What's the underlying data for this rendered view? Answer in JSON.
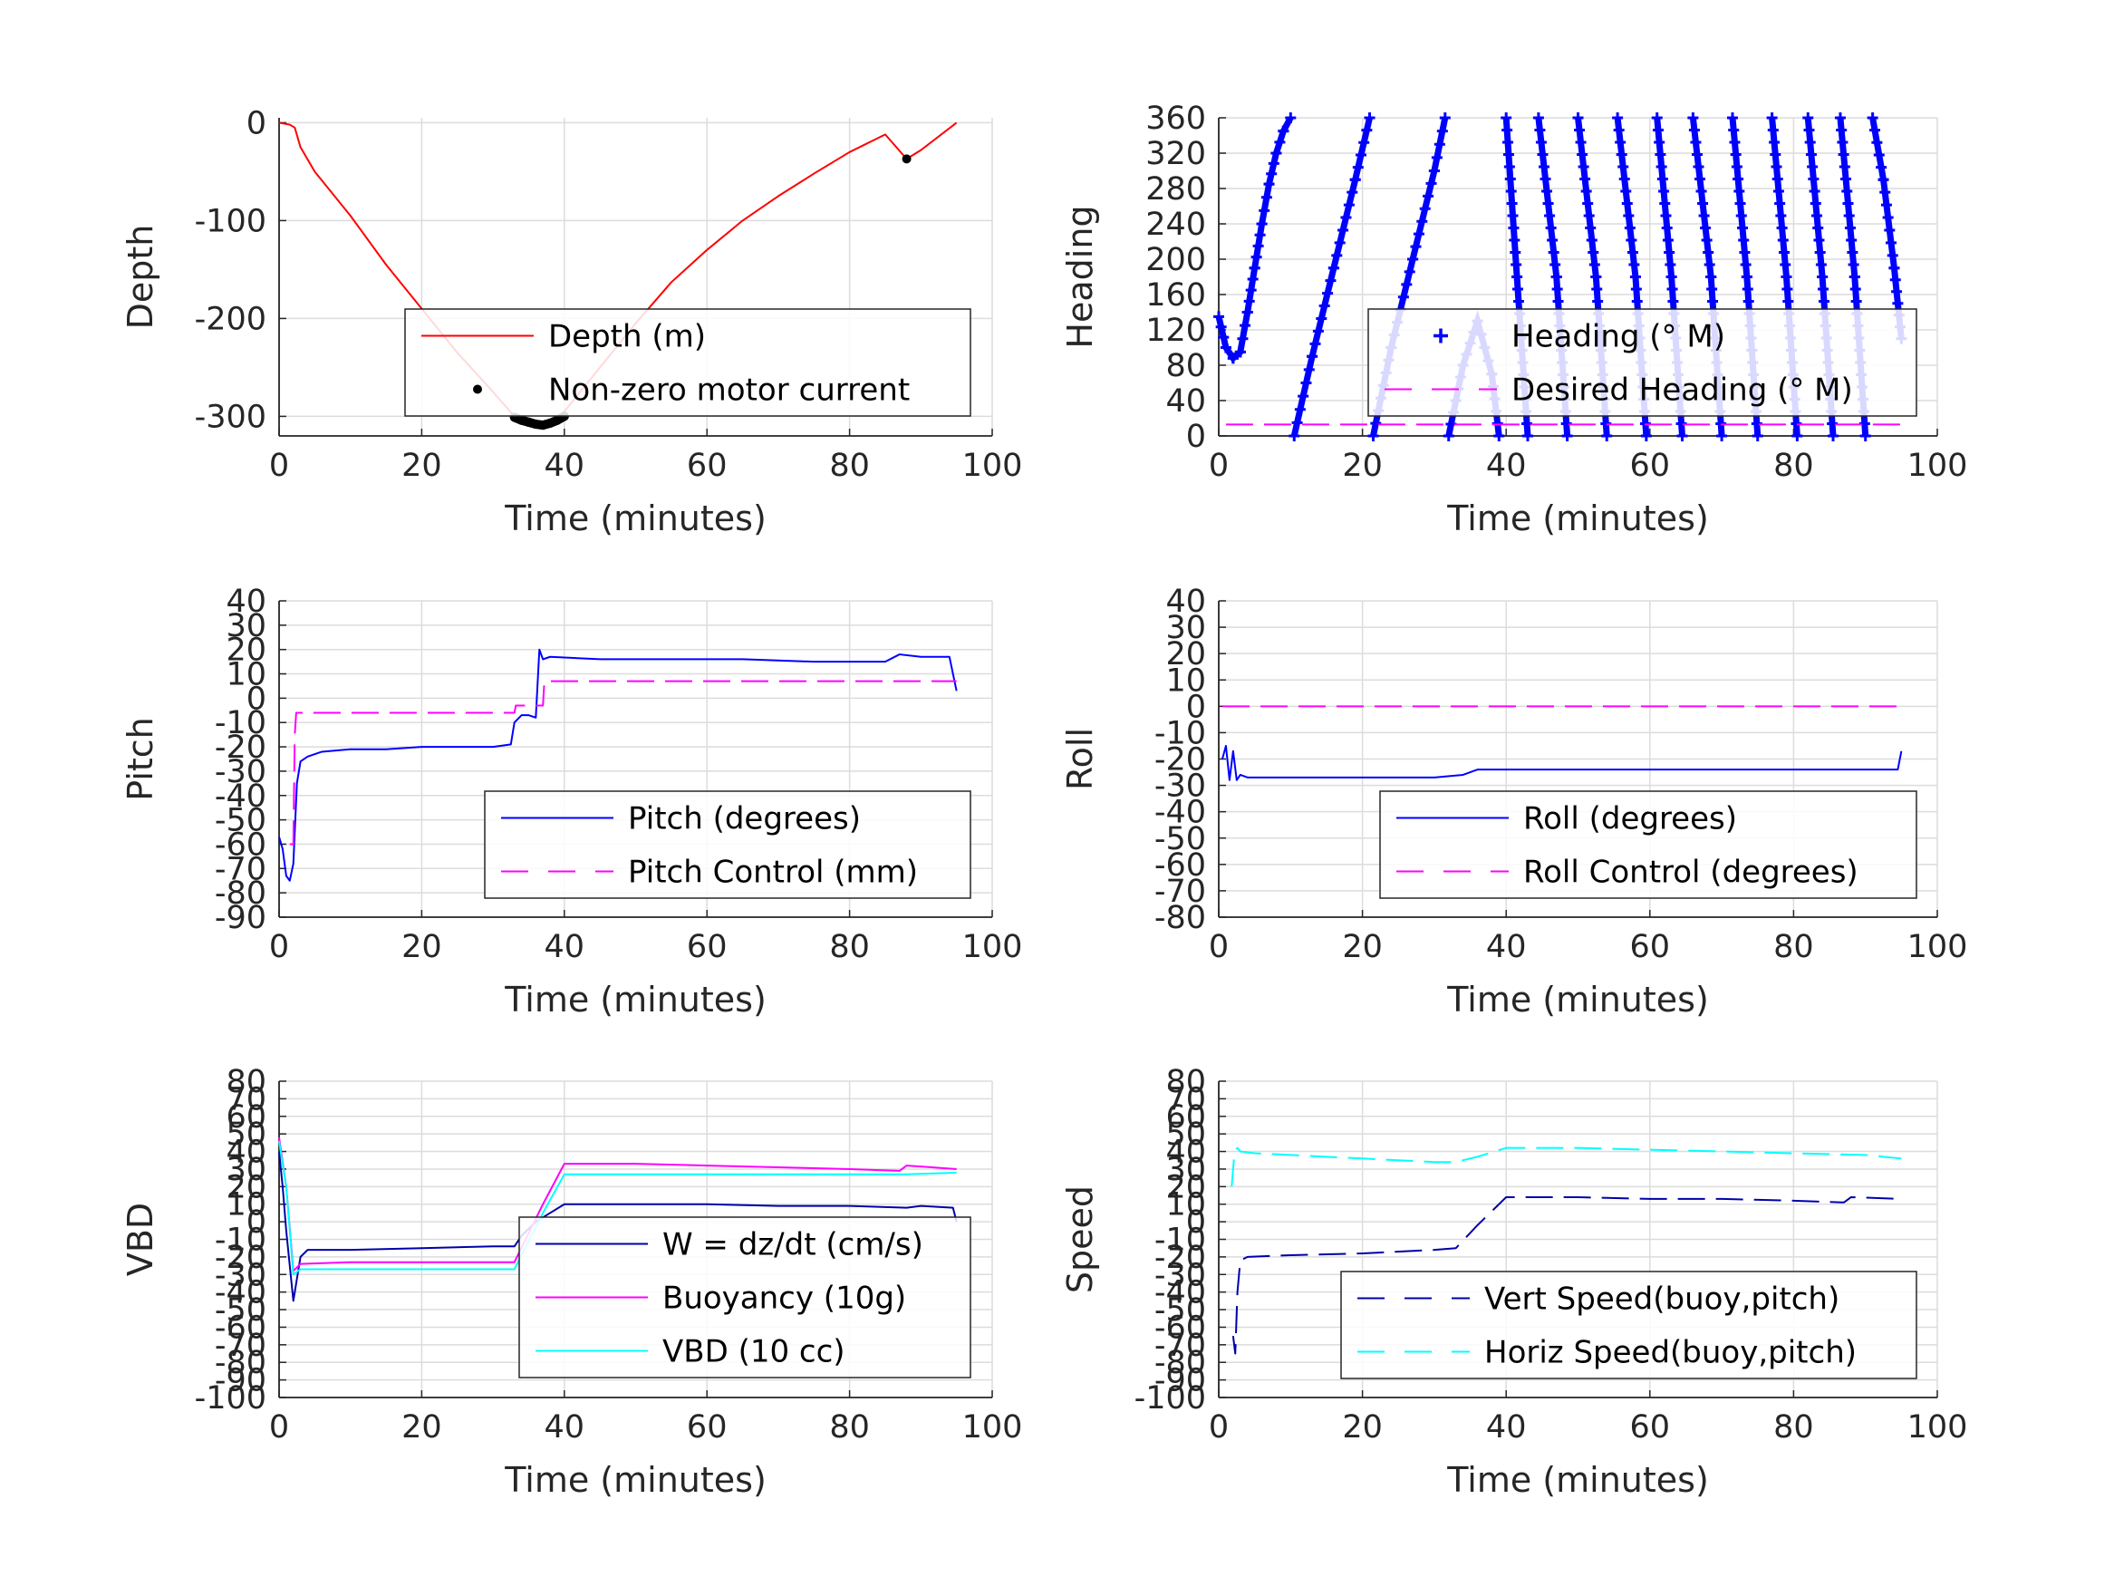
{
  "colors": {
    "depth": "#ff0000",
    "blue": "#0000ff",
    "magenta": "#ff00ff",
    "cyan": "#00ffff",
    "navy": "#0000aa",
    "marker": "#000000"
  },
  "chart_data": [
    {
      "type": "line",
      "xlabel": "Time (minutes)",
      "ylabel": "Depth",
      "xlim": [
        0,
        100
      ],
      "ylim": [
        -320,
        5
      ],
      "xticks": [
        0,
        20,
        40,
        60,
        80,
        100
      ],
      "yticks": [
        -300,
        -200,
        -100,
        0
      ],
      "legend_position": "bottom-right",
      "series": [
        {
          "name": "Depth (m)",
          "style": "solid",
          "color": "#ff0000",
          "x": [
            0,
            1.5,
            2.2,
            3,
            5,
            10,
            15,
            20,
            25,
            30,
            33,
            35,
            37,
            39,
            40,
            45,
            50,
            55,
            60,
            65,
            70,
            75,
            80,
            85,
            88,
            90,
            95
          ],
          "y": [
            0,
            -2,
            -5,
            -25,
            -50,
            -95,
            -145,
            -190,
            -235,
            -275,
            -300,
            -307,
            -310,
            -305,
            -295,
            -250,
            -205,
            -163,
            -130,
            -100,
            -75,
            -52,
            -30,
            -12,
            -37,
            -28,
            0
          ]
        },
        {
          "name": "Non-zero motor current",
          "style": "markers",
          "color": "#000000",
          "x": [
            33,
            34,
            35,
            36,
            37,
            38,
            39,
            40,
            88
          ],
          "y": [
            -301,
            -304,
            -306,
            -308,
            -309,
            -307,
            -304,
            -300,
            -37
          ]
        }
      ]
    },
    {
      "type": "line",
      "xlabel": "Time (minutes)",
      "ylabel": "Heading",
      "xlim": [
        0,
        100
      ],
      "ylim": [
        0,
        360
      ],
      "xticks": [
        0,
        20,
        40,
        60,
        80,
        100
      ],
      "yticks": [
        0,
        40,
        80,
        120,
        160,
        200,
        240,
        280,
        320,
        360
      ],
      "legend_position": "bottom-right",
      "series": [
        {
          "name": "Heading (° M)",
          "style": "plus",
          "color": "#0000ff",
          "segments": [
            {
              "x": [
                0,
                1,
                2,
                3,
                4,
                5,
                6,
                7,
                8,
                9,
                10
              ],
              "y": [
                135,
                100,
                88,
                95,
                140,
                190,
                240,
                285,
                320,
                345,
                360
              ]
            },
            {
              "x": [
                10.5,
                13,
                16,
                19,
                21
              ],
              "y": [
                0,
                90,
                190,
                290,
                360
              ]
            },
            {
              "x": [
                21.5,
                24,
                27,
                30,
                31.5
              ],
              "y": [
                0,
                100,
                200,
                300,
                360
              ]
            },
            {
              "x": [
                32,
                34,
                36,
                38,
                39
              ],
              "y": [
                0,
                80,
                130,
                70,
                0
              ]
            },
            {
              "x": [
                40,
                41.5,
                43
              ],
              "y": [
                360,
                180,
                0
              ]
            },
            {
              "x": [
                44.5,
                47,
                48.5
              ],
              "y": [
                360,
                180,
                0
              ]
            },
            {
              "x": [
                50,
                52.5,
                54
              ],
              "y": [
                360,
                180,
                0
              ]
            },
            {
              "x": [
                55.5,
                58,
                59.5
              ],
              "y": [
                360,
                180,
                0
              ]
            },
            {
              "x": [
                61,
                63,
                64.5
              ],
              "y": [
                360,
                180,
                0
              ]
            },
            {
              "x": [
                66,
                68.5,
                70
              ],
              "y": [
                360,
                180,
                0
              ]
            },
            {
              "x": [
                71.5,
                73.5,
                75
              ],
              "y": [
                360,
                180,
                0
              ]
            },
            {
              "x": [
                77,
                79,
                80.5
              ],
              "y": [
                360,
                180,
                0
              ]
            },
            {
              "x": [
                82,
                84,
                85.5
              ],
              "y": [
                360,
                180,
                0
              ]
            },
            {
              "x": [
                86.5,
                88.5,
                90
              ],
              "y": [
                360,
                180,
                0
              ]
            },
            {
              "x": [
                91,
                92.5,
                94,
                95
              ],
              "y": [
                360,
                290,
                190,
                110
              ]
            }
          ]
        },
        {
          "name": "Desired Heading (° M)",
          "style": "dashed",
          "color": "#ff00ff",
          "x": [
            1,
            95
          ],
          "y": [
            13,
            13
          ]
        }
      ]
    },
    {
      "type": "line",
      "xlabel": "Time (minutes)",
      "ylabel": "Pitch",
      "xlim": [
        0,
        100
      ],
      "ylim": [
        -90,
        40
      ],
      "xticks": [
        0,
        20,
        40,
        60,
        80,
        100
      ],
      "yticks": [
        -90,
        -80,
        -70,
        -60,
        -50,
        -40,
        -30,
        -20,
        -10,
        0,
        10,
        20,
        30,
        40
      ],
      "legend_position": "bottom-right",
      "series": [
        {
          "name": "Pitch (degrees)",
          "style": "solid",
          "color": "#0000ff",
          "x": [
            0,
            0.5,
            1,
            1.5,
            2,
            2.5,
            3,
            4,
            6,
            10,
            15,
            20,
            25,
            30,
            32.5,
            33,
            34,
            35,
            36,
            36.5,
            37,
            38,
            45,
            55,
            65,
            75,
            85,
            87,
            90,
            94,
            95
          ],
          "y": [
            -57,
            -62,
            -73,
            -75,
            -68,
            -35,
            -26,
            -24,
            -22,
            -21,
            -21,
            -20,
            -20,
            -20,
            -19,
            -10,
            -7,
            -7,
            -8,
            20,
            16,
            17,
            16,
            16,
            16,
            15,
            15,
            18,
            17,
            17,
            3
          ]
        },
        {
          "name": "Pitch Control (mm)",
          "style": "dashed",
          "color": "#ff00ff",
          "x": [
            1.5,
            2,
            2.2,
            2.4,
            33,
            33.2,
            37,
            37.2,
            95
          ],
          "y": [
            -60,
            -60,
            -15,
            -6,
            -6,
            -3,
            -3,
            7,
            7
          ]
        }
      ]
    },
    {
      "type": "line",
      "xlabel": "Time (minutes)",
      "ylabel": "Roll",
      "xlim": [
        0,
        100
      ],
      "ylim": [
        -80,
        40
      ],
      "xticks": [
        0,
        20,
        40,
        60,
        80,
        100
      ],
      "yticks": [
        -80,
        -70,
        -60,
        -50,
        -40,
        -30,
        -20,
        -10,
        0,
        10,
        20,
        30,
        40
      ],
      "legend_position": "bottom-right",
      "series": [
        {
          "name": "Roll (degrees)",
          "style": "solid",
          "color": "#0000ff",
          "x": [
            0.5,
            1,
            1.5,
            2,
            2.5,
            3,
            4,
            10,
            20,
            30,
            34,
            36,
            40,
            60,
            80,
            94.5,
            95
          ],
          "y": [
            -20,
            -15,
            -28,
            -17,
            -28,
            -26,
            -27,
            -27,
            -27,
            -27,
            -26,
            -24,
            -24,
            -24,
            -24,
            -24,
            -17
          ]
        },
        {
          "name": "Roll Control (degrees)",
          "style": "dashed",
          "color": "#ff00ff",
          "x": [
            0.5,
            95
          ],
          "y": [
            0,
            0
          ]
        }
      ]
    },
    {
      "type": "line",
      "xlabel": "Time (minutes)",
      "ylabel": "VBD",
      "xlim": [
        0,
        100
      ],
      "ylim": [
        -100,
        80
      ],
      "xticks": [
        0,
        20,
        40,
        60,
        80,
        100
      ],
      "yticks": [
        -100,
        -90,
        -80,
        -70,
        -60,
        -50,
        -40,
        -30,
        -20,
        -10,
        0,
        10,
        20,
        30,
        40,
        50,
        60,
        70,
        80
      ],
      "legend_position": "bottom-right",
      "series": [
        {
          "name": "W = dz/dt (cm/s)",
          "style": "solid",
          "color": "#0000aa",
          "x": [
            0,
            0.5,
            1,
            1.5,
            2,
            3,
            4,
            10,
            20,
            30,
            33,
            34,
            36,
            38,
            40,
            50,
            60,
            70,
            80,
            88,
            90,
            94.5,
            95
          ],
          "y": [
            40,
            20,
            -5,
            -25,
            -45,
            -20,
            -16,
            -16,
            -15,
            -14,
            -14,
            -8,
            0,
            5,
            10,
            10,
            10,
            9,
            9,
            8,
            9,
            8,
            0
          ]
        },
        {
          "name": "Buoyancy (10g)",
          "style": "solid",
          "color": "#ff00ff",
          "x": [
            0,
            1,
            2,
            3,
            10,
            20,
            33,
            37,
            40,
            50,
            60,
            70,
            80,
            87,
            88,
            95
          ],
          "y": [
            48,
            20,
            -28,
            -24,
            -23,
            -23,
            -23,
            10,
            33,
            33,
            32,
            31,
            30,
            29,
            32,
            30
          ]
        },
        {
          "name": "VBD (10 cc)",
          "style": "solid",
          "color": "#00ffff",
          "x": [
            0,
            1,
            2,
            3,
            10,
            20,
            33,
            37,
            40,
            50,
            60,
            70,
            80,
            88,
            95
          ],
          "y": [
            46,
            20,
            -30,
            -27,
            -27,
            -27,
            -27,
            5,
            27,
            27,
            27,
            27,
            27,
            27,
            28
          ]
        }
      ]
    },
    {
      "type": "line",
      "xlabel": "Time (minutes)",
      "ylabel": "Speed",
      "xlim": [
        0,
        100
      ],
      "ylim": [
        -100,
        80
      ],
      "xticks": [
        0,
        20,
        40,
        60,
        80,
        100
      ],
      "yticks": [
        -100,
        -90,
        -80,
        -70,
        -60,
        -50,
        -40,
        -30,
        -20,
        -10,
        0,
        10,
        20,
        30,
        40,
        50,
        60,
        70,
        80
      ],
      "legend_position": "bottom-right",
      "series": [
        {
          "name": "Vert Speed(buoy,pitch)",
          "style": "dashed",
          "color": "#0000aa",
          "x": [
            2,
            2.3,
            2.6,
            3,
            4,
            10,
            20,
            30,
            33,
            36,
            40,
            50,
            60,
            70,
            80,
            87,
            88,
            95
          ],
          "y": [
            -65,
            -75,
            -40,
            -22,
            -20,
            -19,
            -18,
            -16,
            -15,
            -2,
            14,
            14,
            13,
            13,
            12,
            11,
            14,
            13
          ]
        },
        {
          "name": "Horiz Speed(buoy,pitch)",
          "style": "dashed",
          "color": "#00ffff",
          "x": [
            1.8,
            2.2,
            2.6,
            3,
            5,
            10,
            20,
            30,
            33,
            36,
            40,
            50,
            60,
            70,
            80,
            90,
            95
          ],
          "y": [
            20,
            40,
            42,
            40,
            39,
            38,
            36,
            34,
            34,
            37,
            42,
            42,
            41,
            40,
            39,
            38,
            36
          ]
        }
      ]
    }
  ]
}
